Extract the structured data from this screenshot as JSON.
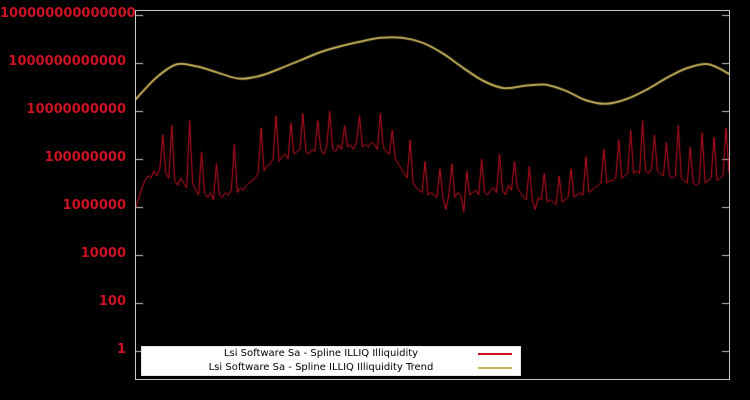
{
  "page": {
    "background": "#000000"
  },
  "chart_data": {
    "type": "line",
    "title": "",
    "xlabel": "",
    "ylabel": "",
    "y_scale": "log10",
    "grid": false,
    "x_tick_labels": [],
    "axis_color": "#c8c8c8",
    "tick_label_color": "#cc1122",
    "ylim_log10": [
      -1.2,
      14.2
    ],
    "y_ticks": [
      {
        "label": "1",
        "log10": 0
      },
      {
        "label": "100",
        "log10": 2
      },
      {
        "label": "10000",
        "log10": 4
      },
      {
        "label": "1000000",
        "log10": 6
      },
      {
        "label": "100000000",
        "log10": 8
      },
      {
        "label": "10000000000",
        "log10": 10
      },
      {
        "label": "1000000000000",
        "log10": 12
      },
      {
        "label": "100000000000000",
        "log10": 14
      }
    ],
    "series": [
      {
        "name": "Lsi Software Sa - Spline ILLIQ Illiquidity",
        "color": "#cc1122",
        "line_width": 1,
        "smooth": false,
        "log10_values": [
          6.0,
          6.4,
          6.8,
          7.1,
          7.3,
          7.2,
          7.5,
          7.3,
          7.6,
          9.0,
          7.4,
          7.2,
          9.4,
          7.1,
          6.9,
          7.2,
          7.0,
          6.8,
          9.6,
          7.0,
          6.7,
          6.5,
          8.3,
          6.6,
          6.4,
          6.6,
          6.3,
          7.8,
          6.5,
          6.4,
          6.6,
          6.5,
          6.7,
          8.6,
          6.6,
          6.8,
          6.7,
          6.9,
          7.0,
          7.1,
          7.2,
          7.4,
          9.3,
          7.5,
          7.7,
          7.8,
          8.0,
          9.8,
          7.9,
          8.1,
          8.2,
          8.0,
          9.5,
          8.2,
          8.3,
          8.4,
          9.9,
          8.3,
          8.2,
          8.4,
          8.3,
          9.6,
          8.4,
          8.2,
          8.5,
          10.0,
          8.4,
          8.3,
          8.6,
          8.4,
          9.4,
          8.5,
          8.6,
          8.4,
          8.7,
          9.8,
          8.5,
          8.6,
          8.5,
          8.7,
          8.6,
          8.4,
          9.9,
          8.5,
          8.3,
          8.2,
          9.2,
          8.0,
          7.8,
          7.6,
          7.4,
          7.2,
          8.8,
          7.0,
          6.8,
          6.7,
          6.6,
          7.9,
          6.5,
          6.6,
          6.5,
          6.4,
          7.6,
          6.4,
          5.9,
          6.5,
          7.8,
          6.4,
          6.6,
          6.5,
          5.8,
          7.5,
          6.5,
          6.6,
          6.7,
          6.5,
          8.0,
          6.6,
          6.5,
          6.7,
          6.8,
          6.6,
          8.2,
          6.7,
          6.5,
          6.9,
          6.7,
          7.9,
          6.8,
          6.6,
          6.4,
          6.3,
          7.7,
          6.3,
          5.9,
          6.4,
          6.3,
          7.4,
          6.2,
          6.3,
          6.2,
          6.1,
          7.3,
          6.2,
          6.3,
          6.4,
          7.6,
          6.4,
          6.5,
          6.6,
          6.5,
          8.1,
          6.6,
          6.7,
          6.8,
          6.9,
          7.0,
          8.4,
          7.0,
          7.1,
          7.1,
          7.2,
          8.8,
          7.2,
          7.3,
          7.4,
          9.2,
          7.4,
          7.5,
          7.4,
          9.6,
          7.5,
          7.4,
          7.6,
          9.0,
          7.5,
          7.4,
          7.3,
          8.7,
          7.3,
          7.2,
          7.3,
          9.4,
          7.2,
          7.1,
          7.0,
          8.5,
          7.0,
          6.9,
          7.0,
          9.1,
          7.0,
          7.1,
          7.2,
          8.9,
          7.1,
          7.2,
          7.3,
          9.3,
          7.4
        ]
      },
      {
        "name": "Lsi Software Sa - Spline ILLIQ Illiquidity Trend",
        "color": "#c9b45c",
        "line_width": 2,
        "smooth": true,
        "log10_values": [
          10.5,
          11.4,
          11.95,
          11.85,
          11.6,
          11.35,
          11.45,
          11.75,
          12.1,
          12.45,
          12.7,
          12.9,
          13.05,
          13.05,
          12.85,
          12.4,
          11.8,
          11.25,
          10.95,
          11.05,
          11.1,
          10.85,
          10.45,
          10.3,
          10.5,
          10.9,
          11.4,
          11.8,
          11.95,
          11.55
        ]
      }
    ],
    "legend": {
      "position": "bottom-center",
      "background": "#ffffff",
      "items": [
        {
          "label": "Lsi Software Sa - Spline ILLIQ Illiquidity",
          "color": "#cc1122"
        },
        {
          "label": "Lsi Software Sa - Spline ILLIQ Illiquidity Trend",
          "color": "#c9b45c"
        }
      ]
    }
  }
}
